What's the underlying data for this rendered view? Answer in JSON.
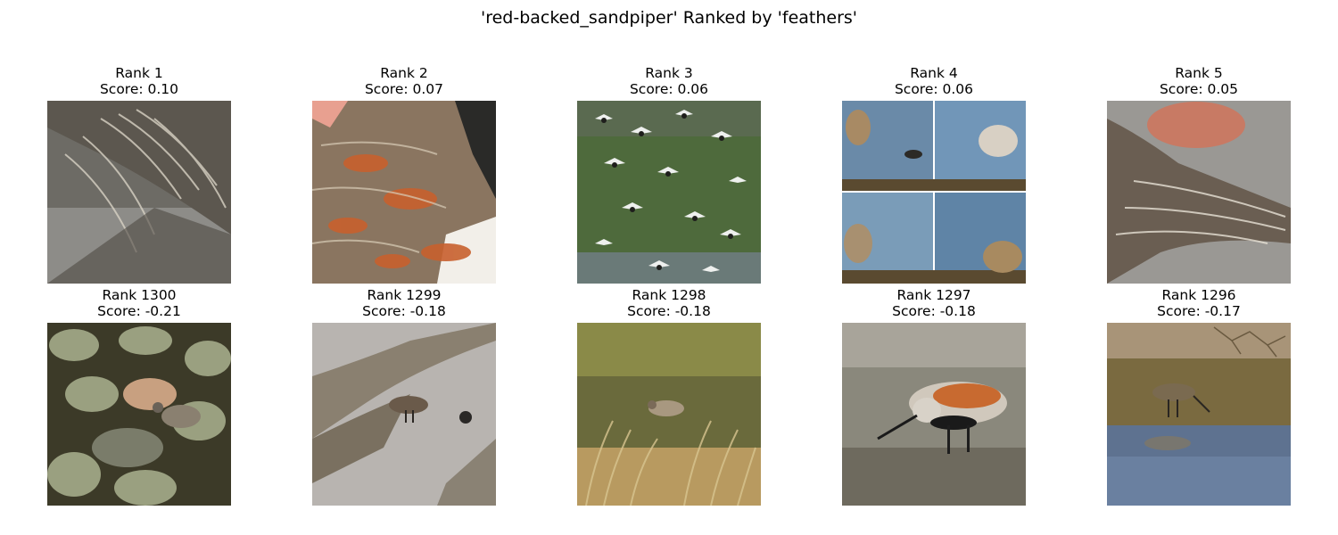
{
  "figure": {
    "title": "'red-backed_sandpiper' Ranked by 'feathers'"
  },
  "panels": [
    {
      "rank": "Rank 1",
      "score": "Score: 0.10",
      "thumbnail": "wing-feathers-closeup"
    },
    {
      "rank": "Rank 2",
      "score": "Score: 0.07",
      "thumbnail": "rufous-back-feathers-closeup"
    },
    {
      "rank": "Rank 3",
      "score": "Score: 0.06",
      "thumbnail": "flock-in-flight"
    },
    {
      "rank": "Rank 4",
      "score": "Score: 0.06",
      "thumbnail": "four-photo-collage"
    },
    {
      "rank": "Rank 5",
      "score": "Score: 0.05",
      "thumbnail": "spread-wing-in-hand"
    },
    {
      "rank": "Rank 1300",
      "score": "Score: -0.21",
      "thumbnail": "bird-on-rocks"
    },
    {
      "rank": "Rank 1299",
      "score": "Score: -0.18",
      "thumbnail": "bird-in-stream"
    },
    {
      "rank": "Rank 1298",
      "score": "Score: -0.18",
      "thumbnail": "bird-in-grass"
    },
    {
      "rank": "Rank 1297",
      "score": "Score: -0.18",
      "thumbnail": "bird-on-mudflat"
    },
    {
      "rank": "Rank 1296",
      "score": "Score: -0.17",
      "thumbnail": "bird-wading-puddle"
    }
  ]
}
